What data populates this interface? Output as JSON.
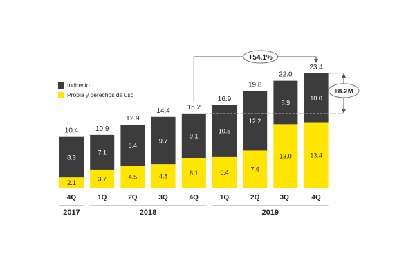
{
  "legend": [
    {
      "label": "Indirecto",
      "color": "#3c3c3c"
    },
    {
      "label": "Propia y derechos de uso",
      "color": "#ffe500"
    }
  ],
  "annotations": {
    "growth_label": "+54.1%",
    "delta_label": "+8.2M"
  },
  "chart_data": {
    "type": "bar",
    "stacked": true,
    "categories": [
      "4Q",
      "1Q",
      "2Q",
      "3Q",
      "4Q",
      "1Q",
      "2Q",
      "3Q¹",
      "4Q"
    ],
    "year_groups": [
      {
        "label": "2017",
        "start": 0,
        "end": 0
      },
      {
        "label": "2018",
        "start": 1,
        "end": 4
      },
      {
        "label": "2019",
        "start": 5,
        "end": 8
      }
    ],
    "series": [
      {
        "name": "Propia y derechos de uso",
        "color": "#ffe500",
        "values": [
          2.1,
          3.7,
          4.5,
          4.8,
          6.1,
          6.4,
          7.6,
          13.0,
          13.4
        ]
      },
      {
        "name": "Indirecto",
        "color": "#3c3c3c",
        "values": [
          8.3,
          7.1,
          8.4,
          9.7,
          9.1,
          10.5,
          12.2,
          8.9,
          10.0
        ]
      }
    ],
    "totals": [
      "10.4",
      "10.9",
      "12.9",
      "14.4",
      "15.2",
      "16.9",
      "19.8",
      "22.0",
      "23.4"
    ],
    "bottom_labels": [
      "2.1",
      "3.7",
      "4.5",
      "4.8",
      "6.1",
      "6.4",
      "7.6",
      "13.0",
      "13.4"
    ],
    "top_labels": [
      "8.3",
      "7.1",
      "8.4",
      "9.7",
      "9.1",
      "10.5",
      "12.2",
      "8.9",
      "10.0"
    ],
    "ylim": [
      0,
      25
    ],
    "grid": false,
    "legend_position": "top-left"
  }
}
